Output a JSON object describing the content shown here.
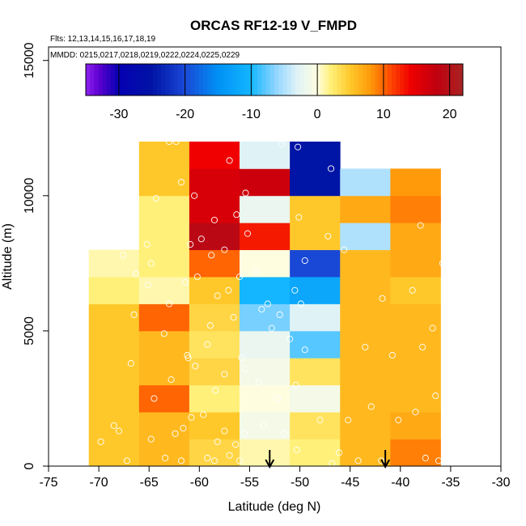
{
  "chart_data": {
    "type": "heatmap",
    "title": "ORCAS RF12-19 V_FMPD",
    "flights_note": "Flts: 12,13,14,15,16,17,18,19",
    "dates_note": "MMDD: 0215,0217,0218,0219,0222,0224,0225,0229",
    "xlabel": "Latitude (deg N)",
    "ylabel": "Altitude (m)",
    "xlim": [
      -75,
      -30
    ],
    "ylim": [
      0,
      15500
    ],
    "x_ticks": [
      -75,
      -70,
      -65,
      -60,
      -55,
      -50,
      -45,
      -40,
      -35,
      -30
    ],
    "x_tick_labels": [
      "-75",
      "-70",
      "-65",
      "-60",
      "-55",
      "-50",
      "-45",
      "-40",
      "-35",
      "-30"
    ],
    "y_ticks": [
      0,
      5000,
      10000,
      15000
    ],
    "y_tick_labels": [
      "0",
      "5000",
      "10000",
      "15000"
    ],
    "colorbar": {
      "range": [
        -35,
        22
      ],
      "ticks": [
        -30,
        -20,
        -10,
        0,
        10,
        20
      ],
      "tick_labels": [
        "-30",
        "-20",
        "-10",
        "0",
        "10",
        "20"
      ],
      "stops": [
        {
          "v": -35,
          "c": "#8f22f0"
        },
        {
          "v": -33,
          "c": "#5d00d0"
        },
        {
          "v": -30,
          "c": "#0500b2"
        },
        {
          "v": -25,
          "c": "#0014a6"
        },
        {
          "v": -20,
          "c": "#1a48d6"
        },
        {
          "v": -15,
          "c": "#0091f5"
        },
        {
          "v": -10,
          "c": "#14b6ff"
        },
        {
          "v": -6,
          "c": "#99d8ff"
        },
        {
          "v": -3,
          "c": "#dff3f6"
        },
        {
          "v": 0,
          "c": "#fffde0"
        },
        {
          "v": 2,
          "c": "#fff07a"
        },
        {
          "v": 5,
          "c": "#ffc82a"
        },
        {
          "v": 8,
          "c": "#ff9a0a"
        },
        {
          "v": 11,
          "c": "#ff4a00"
        },
        {
          "v": 14,
          "c": "#f00000"
        },
        {
          "v": 18,
          "c": "#c00010"
        },
        {
          "v": 22,
          "c": "#a82422"
        }
      ]
    },
    "lat_bin_edges": [
      -71,
      -66,
      -61,
      -56,
      -51,
      -46,
      -41,
      -36
    ],
    "alt_bin_edges": [
      0,
      1000,
      2000,
      3000,
      4000,
      5000,
      6000,
      7000,
      8000,
      9000,
      10000,
      11000,
      12000
    ],
    "cells": [
      [
        5,
        6,
        4,
        1,
        2,
        6,
        9
      ],
      [
        5,
        6,
        5,
        -1,
        3,
        6,
        7
      ],
      [
        5,
        10,
        2,
        0,
        -1,
        6,
        6
      ],
      [
        5,
        6,
        4,
        -1,
        3,
        6,
        6
      ],
      [
        5,
        6,
        3,
        -2,
        -8,
        6,
        6
      ],
      [
        5,
        10,
        4,
        -7,
        -3,
        6,
        6
      ],
      [
        2,
        1,
        5,
        -10,
        -12,
        6,
        5
      ],
      [
        1,
        2,
        10,
        0,
        -20,
        6,
        7
      ],
      [
        null,
        2,
        19,
        13,
        5,
        -5,
        7
      ],
      [
        null,
        2,
        16,
        -2,
        5,
        7,
        9
      ],
      [
        null,
        5,
        16,
        17,
        -25,
        -5,
        8
      ],
      [
        null,
        5,
        14,
        -3,
        -25,
        null,
        null
      ]
    ],
    "arrows_lat": [
      -53,
      -41.5
    ],
    "sample_points": [
      [
        -68.5,
        1500
      ],
      [
        -69.8,
        900
      ],
      [
        -67.2,
        200
      ],
      [
        -68,
        1300
      ],
      [
        -66.8,
        3800
      ],
      [
        -64.5,
        2500
      ],
      [
        -62.4,
        1200
      ],
      [
        -61.6,
        1400
      ],
      [
        -60.8,
        1800
      ],
      [
        -59.6,
        1900
      ],
      [
        -58.2,
        900
      ],
      [
        -57.5,
        1300
      ],
      [
        -56.4,
        800
      ],
      [
        -55.5,
        1200
      ],
      [
        -59.2,
        300
      ],
      [
        -58.5,
        200
      ],
      [
        -57,
        400
      ],
      [
        -56,
        200
      ],
      [
        -61.8,
        200
      ],
      [
        -63.4,
        300
      ],
      [
        -64.8,
        1000
      ],
      [
        -66.5,
        5600
      ],
      [
        -63.5,
        4900
      ],
      [
        -62.8,
        3200
      ],
      [
        -61.2,
        4100
      ],
      [
        -59.2,
        4500
      ],
      [
        -57.5,
        3400
      ],
      [
        -56.6,
        5500
      ],
      [
        -55.8,
        4000
      ],
      [
        -53.2,
        6000
      ],
      [
        -52,
        5600
      ],
      [
        -51,
        4700
      ],
      [
        -50.5,
        6500
      ],
      [
        -49.5,
        4300
      ],
      [
        -50.4,
        3000
      ],
      [
        -48,
        1700
      ],
      [
        -46.8,
        100
      ],
      [
        -44.2,
        200
      ],
      [
        -43.5,
        4400
      ],
      [
        -41.8,
        6200
      ],
      [
        -40.8,
        4100
      ],
      [
        -38.5,
        2000
      ],
      [
        -38.8,
        6500
      ],
      [
        -37.8,
        4400
      ],
      [
        -36.5,
        2600
      ],
      [
        -36.8,
        5100
      ],
      [
        -36.2,
        200
      ],
      [
        -35.8,
        7500
      ],
      [
        -38,
        8900
      ],
      [
        -35.3,
        9900
      ],
      [
        -65.2,
        8200
      ],
      [
        -66.3,
        7100
      ],
      [
        -67.6,
        7800
      ],
      [
        -64.8,
        7500
      ],
      [
        -60.2,
        7000
      ],
      [
        -58.8,
        7800
      ],
      [
        -57.5,
        8000
      ],
      [
        -56,
        7000
      ],
      [
        -55.2,
        8600
      ],
      [
        -57,
        11300
      ],
      [
        -55.4,
        10100
      ],
      [
        -56.3,
        9300
      ],
      [
        -51.8,
        11900
      ],
      [
        -50.2,
        11800
      ],
      [
        -46.9,
        11000
      ],
      [
        -50.1,
        9200
      ],
      [
        -49.5,
        7600
      ],
      [
        -47.2,
        8500
      ],
      [
        -45.6,
        8000
      ],
      [
        -64.3,
        9900
      ],
      [
        -63,
        12000
      ],
      [
        -62.3,
        12000
      ],
      [
        -61.8,
        10500
      ],
      [
        -60.5,
        10000
      ],
      [
        -58.2,
        6300
      ],
      [
        -63,
        6000
      ],
      [
        -65.1,
        6700
      ],
      [
        -61.4,
        6800
      ],
      [
        -54.4,
        7200
      ],
      [
        -53.8,
        5800
      ],
      [
        -52.8,
        5100
      ],
      [
        -49.9,
        6000
      ],
      [
        -46.1,
        500
      ],
      [
        -45.2,
        1700
      ],
      [
        -42.9,
        2200
      ],
      [
        -41.9,
        200
      ],
      [
        -40.2,
        1700
      ],
      [
        -37.5,
        300
      ],
      [
        -61.1,
        4000
      ],
      [
        -60.4,
        3700
      ],
      [
        -58.4,
        2800
      ],
      [
        -55.4,
        3600
      ],
      [
        -54.1,
        3100
      ],
      [
        -53.6,
        1500
      ],
      [
        -52.2,
        2500
      ],
      [
        -51.6,
        1200
      ],
      [
        -50.3,
        600
      ],
      [
        -58.9,
        5200
      ],
      [
        -57.1,
        6500
      ],
      [
        -60.9,
        8200
      ],
      [
        -59.8,
        8400
      ],
      [
        -58.5,
        9100
      ]
    ]
  }
}
